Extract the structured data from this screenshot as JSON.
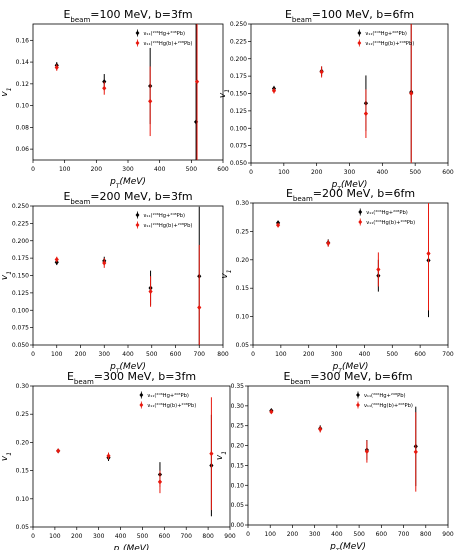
{
  "chart_data": [
    {
      "type": "scatter",
      "title": {
        "pre": "E",
        "sub": "beam",
        "post": "=100 MeV, b=3fm"
      },
      "xlabel": "p_T(MeV)",
      "ylabel": "v_1",
      "xlim": [
        0,
        600
      ],
      "ylim": [
        0.05,
        0.175
      ],
      "xticks": [
        "0",
        "100",
        "200",
        "300",
        "400",
        "500",
        "600"
      ],
      "yticks": [
        "0.06",
        "0.08",
        "0.10",
        "0.12",
        "0.14",
        "0.16"
      ],
      "legend": "top-right",
      "series": [
        {
          "name": "ν₁₁(²⁰⁶Hg+²⁰⁸Pb)",
          "color": "#000000",
          "x": [
            75,
            225,
            370,
            515
          ],
          "y": [
            0.137,
            0.122,
            0.118,
            0.085
          ],
          "err": [
            0.003,
            0.007,
            0.035,
            0.09
          ]
        },
        {
          "name": "ν₁₁(²⁰⁶Hg(b)+²⁰⁸Pb)",
          "color": "#e8190f",
          "x": [
            75,
            225,
            370,
            518
          ],
          "y": [
            0.135,
            0.116,
            0.104,
            0.122
          ],
          "err": [
            0.003,
            0.006,
            0.032,
            0.09
          ]
        }
      ]
    },
    {
      "type": "scatter",
      "title": {
        "pre": "E",
        "sub": "beam",
        "post": "=100 MeV, b=6fm"
      },
      "xlabel": "p_T(MeV)",
      "ylabel": "v_1",
      "xlim": [
        0,
        600
      ],
      "ylim": [
        0.05,
        0.25
      ],
      "xticks": [
        "0",
        "100",
        "200",
        "300",
        "400",
        "500",
        "600"
      ],
      "yticks": [
        "0.050",
        "0.075",
        "0.100",
        "0.125",
        "0.150",
        "0.175",
        "0.200",
        "0.225",
        "0.250"
      ],
      "legend": "top-right",
      "series": [
        {
          "name": "ν₁₁(²⁰⁶Hg+²⁰⁸Pb)",
          "color": "#000000",
          "x": [
            70,
            215,
            350,
            488
          ],
          "y": [
            0.157,
            0.182,
            0.136,
            0.152
          ],
          "err": [
            0.004,
            0.007,
            0.04,
            0.1
          ]
        },
        {
          "name": "ν₁₁(²⁰⁶Hg(b)+²⁰⁸Pb)",
          "color": "#e8190f",
          "x": [
            70,
            215,
            350,
            488
          ],
          "y": [
            0.154,
            0.181,
            0.121,
            0.15
          ],
          "err": [
            0.004,
            0.008,
            0.035,
            0.1
          ]
        }
      ]
    },
    {
      "type": "scatter",
      "title": {
        "pre": "E",
        "sub": "beam",
        "post": "=200 MeV, b=3fm"
      },
      "xlabel": "p_T(MeV)",
      "ylabel": "v_1",
      "xlim": [
        0,
        800
      ],
      "ylim": [
        0.05,
        0.25
      ],
      "xticks": [
        "0",
        "100",
        "200",
        "300",
        "400",
        "500",
        "600",
        "700",
        "800"
      ],
      "yticks": [
        "0.050",
        "0.075",
        "0.100",
        "0.125",
        "0.150",
        "0.175",
        "0.200",
        "0.225",
        "0.250"
      ],
      "legend": "top-right",
      "series": [
        {
          "name": "ν₁₁(²⁰⁶Hg+²⁰⁸Pb)",
          "color": "#000000",
          "x": [
            100,
            300,
            495,
            700
          ],
          "y": [
            0.169,
            0.171,
            0.132,
            0.149
          ],
          "err": [
            0.004,
            0.006,
            0.025,
            0.1
          ]
        },
        {
          "name": "ν₁₁(²⁰⁶Hg(b)+²⁰⁸Pb)",
          "color": "#e8190f",
          "x": [
            100,
            300,
            495,
            700
          ],
          "y": [
            0.173,
            0.168,
            0.127,
            0.104
          ],
          "err": [
            0.004,
            0.007,
            0.022,
            0.09
          ]
        }
      ]
    },
    {
      "type": "scatter",
      "title": {
        "pre": "E",
        "sub": "beam",
        "post": "=200 MeV, b=6fm"
      },
      "xlabel": "p_T(MeV)",
      "ylabel": "v_1",
      "xlim": [
        0,
        700
      ],
      "ylim": [
        0.05,
        0.3
      ],
      "xticks": [
        "0",
        "100",
        "200",
        "300",
        "400",
        "500",
        "600",
        "700"
      ],
      "yticks": [
        "0.05",
        "0.10",
        "0.15",
        "0.20",
        "0.25",
        "0.30"
      ],
      "legend": "top-right",
      "series": [
        {
          "name": "ν₁₁(²⁰⁶Hg+²⁰⁸Pb)",
          "color": "#000000",
          "x": [
            90,
            270,
            450,
            630
          ],
          "y": [
            0.265,
            0.23,
            0.172,
            0.199
          ],
          "err": [
            0.004,
            0.006,
            0.028,
            0.1
          ]
        },
        {
          "name": "ν₁₁(²⁰⁶Hg(b)+²⁰⁸Pb)",
          "color": "#e8190f",
          "x": [
            90,
            270,
            450,
            630
          ],
          "y": [
            0.261,
            0.229,
            0.183,
            0.211
          ],
          "err": [
            0.004,
            0.006,
            0.03,
            0.1
          ]
        }
      ]
    },
    {
      "type": "scatter",
      "title": {
        "pre": "E",
        "sub": "beam",
        "post": "=300 MeV, b=3fm"
      },
      "xlabel": "p_T(MeV)",
      "ylabel": "v_1",
      "xlim": [
        0,
        900
      ],
      "ylim": [
        0.05,
        0.3
      ],
      "xticks": [
        "0",
        "100",
        "200",
        "300",
        "400",
        "500",
        "600",
        "700",
        "800",
        "900"
      ],
      "yticks": [
        "0.05",
        "0.10",
        "0.15",
        "0.20",
        "0.25",
        "0.30"
      ],
      "legend": "top-right",
      "series": [
        {
          "name": "ν₁₁(²⁰⁶Hg+²⁰⁸Pb)",
          "color": "#000000",
          "x": [
            115,
            345,
            580,
            815
          ],
          "y": [
            0.185,
            0.173,
            0.143,
            0.159
          ],
          "err": [
            0.003,
            0.006,
            0.022,
            0.09
          ]
        },
        {
          "name": "ν₁₁(²⁰⁶Hg(b)+²⁰⁸Pb)",
          "color": "#e8190f",
          "x": [
            115,
            345,
            580,
            815
          ],
          "y": [
            0.185,
            0.176,
            0.13,
            0.18
          ],
          "err": [
            0.003,
            0.006,
            0.02,
            0.1
          ]
        }
      ]
    },
    {
      "type": "scatter",
      "title": {
        "pre": "E",
        "sub": "beam",
        "post": "=300 MeV, b=6fm"
      },
      "xlabel": "p_T(MeV)",
      "ylabel": "v_1",
      "xlim": [
        0,
        900
      ],
      "ylim": [
        0.0,
        0.35
      ],
      "xticks": [
        "0",
        "100",
        "200",
        "300",
        "400",
        "500",
        "600",
        "700",
        "800",
        "900"
      ],
      "yticks": [
        "0.00",
        "0.05",
        "0.10",
        "0.15",
        "0.20",
        "0.25",
        "0.30",
        "0.35"
      ],
      "legend": "top-right",
      "series": [
        {
          "name": "ν₁₁(²⁰⁶Hg+²⁰⁸Pb)",
          "color": "#000000",
          "x": [
            105,
            325,
            535,
            755
          ],
          "y": [
            0.288,
            0.243,
            0.189,
            0.198
          ],
          "err": [
            0.004,
            0.008,
            0.025,
            0.1
          ]
        },
        {
          "name": "ν₁₁(²⁰⁶Hg(b)+²⁰⁸Pb)",
          "color": "#e8190f",
          "x": [
            105,
            325,
            535,
            755
          ],
          "y": [
            0.285,
            0.241,
            0.185,
            0.184
          ],
          "err": [
            0.004,
            0.008,
            0.028,
            0.1
          ]
        }
      ]
    }
  ]
}
